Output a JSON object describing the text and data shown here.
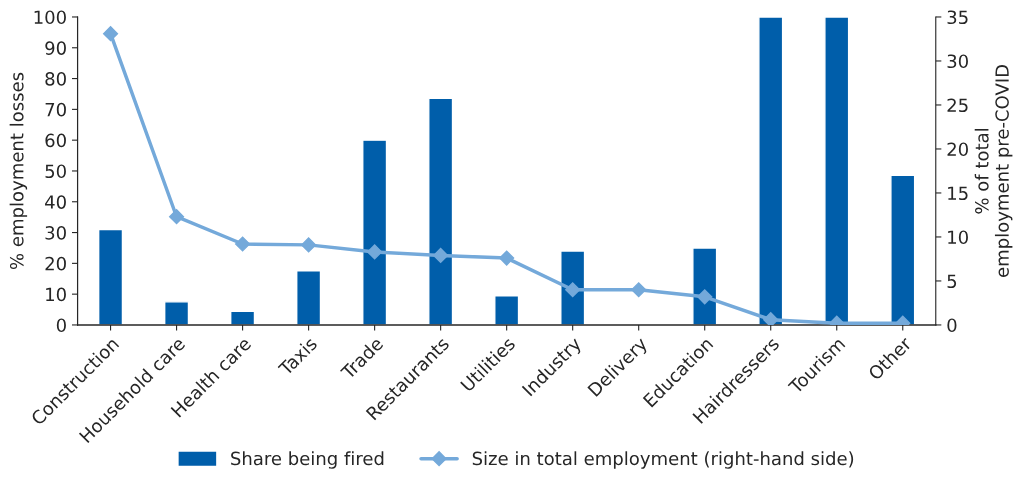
{
  "chart_data": {
    "type": "bar",
    "categories": [
      "Construction",
      "Household care",
      "Health care",
      "Taxis",
      "Trade",
      "Restaurants",
      "Utilities",
      "Industry",
      "Delivery",
      "Education",
      "Hairdressers",
      "Tourism",
      "Other"
    ],
    "series": [
      {
        "name": "Share being fired",
        "color": "#005eaa",
        "values": [
          31,
          7.5,
          4.4,
          17.6,
          60,
          73.6,
          9.5,
          24,
          null,
          25,
          100,
          100,
          48.6
        ]
      },
      {
        "name": "Size in total employment (right-hand side)",
        "type": "line",
        "axis": "y2",
        "color": "#74a9da",
        "marker": "diamond",
        "values": [
          33.1,
          12.3,
          9.2,
          9.1,
          8.3,
          7.9,
          7.6,
          4.0,
          4.0,
          3.2,
          0.6,
          0.2,
          0.2
        ]
      }
    ],
    "ylabel": "% employment losses",
    "y2label": "% of total\nemployment pre-COVID",
    "ylim": [
      0,
      100
    ],
    "yticks": [
      0,
      10,
      20,
      30,
      40,
      50,
      60,
      70,
      80,
      90,
      100
    ],
    "y2lim": [
      0,
      35
    ],
    "y2ticks": [
      0,
      5,
      10,
      15,
      20,
      25,
      30,
      35
    ],
    "grid": false,
    "legend": "bottom"
  }
}
